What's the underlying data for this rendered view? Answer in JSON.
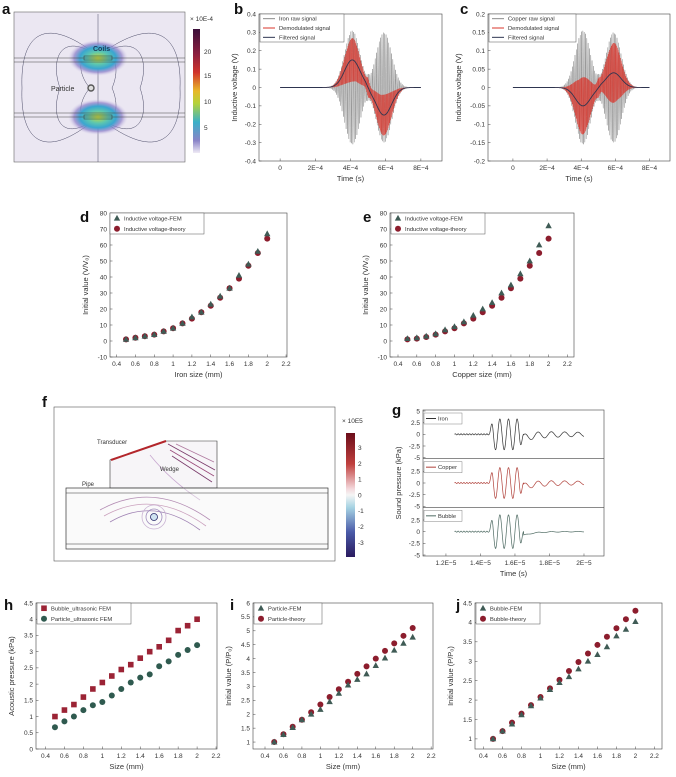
{
  "panel_labels": [
    "a",
    "b",
    "c",
    "d",
    "e",
    "f",
    "g",
    "h",
    "i",
    "j"
  ],
  "field_maps": {
    "a": {
      "labels": {
        "coils": "Coils",
        "particle": "Particle"
      },
      "colorbar": {
        "unit": "× 10E-4",
        "ticks": [
          "20",
          "15",
          "10",
          "5"
        ]
      }
    },
    "f": {
      "labels": {
        "transducer": "Transducer",
        "wedge": "Wedge",
        "pipe": "Pipe"
      },
      "colorbar": {
        "unit": "× 10E5",
        "ticks": [
          "3",
          "2",
          "1",
          "0",
          "-1",
          "-2",
          "-3"
        ]
      }
    }
  },
  "chart_data": [
    {
      "panel": "b",
      "type": "line",
      "xlabel": "Time (s)",
      "ylabel": "Inductive voltage (V)",
      "xlim": [
        -0.00012,
        0.00092
      ],
      "ylim": [
        -0.4,
        0.4
      ],
      "xticks": [
        0,
        0.0002,
        0.0004,
        0.0006,
        0.0008
      ],
      "xtick_labels": [
        "0",
        "2E−4",
        "4E−4",
        "6E−4",
        "8E−4"
      ],
      "yticks": [
        -0.4,
        -0.3,
        -0.2,
        -0.1,
        0,
        0.1,
        0.2,
        0.3,
        0.4
      ],
      "ytick_labels": [
        "-0.4",
        "-0.3",
        "-0.2",
        "-0.1",
        "0",
        "0.1",
        "0.2",
        "0.3",
        "0.4"
      ],
      "legend": [
        "Iron raw signal",
        "Demodulated signal",
        "Filtered signal"
      ],
      "colors": {
        "raw": "#8a8a8a",
        "demod": "#d9342b",
        "filtered": "#2e3550"
      },
      "signal": {
        "t_start": 0,
        "t_end": 0.0008,
        "lobes": [
          {
            "center": 0.00041,
            "raw_amplitude": 0.31,
            "filtered_peak": 0.15
          },
          {
            "center": 0.00059,
            "raw_amplitude": 0.3,
            "filtered_peak": -0.15
          }
        ]
      }
    },
    {
      "panel": "c",
      "type": "line",
      "xlabel": "Time (s)",
      "ylabel": "Inductive voltage (V)",
      "xlim": [
        -0.000146,
        0.00092
      ],
      "ylim": [
        -0.2,
        0.2
      ],
      "xticks": [
        0,
        0.0002,
        0.0004,
        0.0006,
        0.0008
      ],
      "xtick_labels": [
        "0",
        "2E−4",
        "4E−4",
        "6E−4",
        "8E−4"
      ],
      "yticks": [
        -0.2,
        -0.15,
        -0.1,
        -0.05,
        0,
        0.05,
        0.1,
        0.15,
        0.2
      ],
      "ytick_labels": [
        "-0.2",
        "-0.15",
        "-0.1",
        "-0.05",
        "0",
        "0.05",
        "0.1",
        "0.15",
        "0.2"
      ],
      "legend": [
        "Copper raw signal",
        "Demodulated signal",
        "Filtered signal"
      ],
      "colors": {
        "raw": "#8a8a8a",
        "demod": "#d9342b",
        "filtered": "#2e3550"
      },
      "signal": {
        "t_start": 0,
        "t_end": 0.0008,
        "lobes": [
          {
            "center": 0.00041,
            "raw_amplitude": 0.155,
            "filtered_peak": -0.05
          },
          {
            "center": 0.00059,
            "raw_amplitude": 0.15,
            "filtered_peak": 0.04
          }
        ]
      }
    },
    {
      "panel": "d",
      "type": "scatter",
      "xlabel": "Iron size (mm)",
      "ylabel": "Initial value (V/V₀)",
      "xlim": [
        0.33,
        2.21
      ],
      "ylim": [
        -10,
        80
      ],
      "xticks": [
        0.4,
        0.6,
        0.8,
        1,
        1.2,
        1.4,
        1.6,
        1.8,
        2,
        2.2
      ],
      "xtick_labels": [
        "0.4",
        "0.6",
        "0.8",
        "1",
        "1.2",
        "1.4",
        "1.6",
        "1.8",
        "2",
        "2.2"
      ],
      "yticks": [
        -10,
        0,
        10,
        20,
        30,
        40,
        50,
        60,
        70,
        80
      ],
      "ytick_labels": [
        "-10",
        "0",
        "10",
        "20",
        "30",
        "40",
        "50",
        "60",
        "70",
        "80"
      ],
      "x": [
        0.5,
        0.6,
        0.7,
        0.8,
        0.9,
        1.0,
        1.1,
        1.2,
        1.3,
        1.4,
        1.5,
        1.6,
        1.7,
        1.8,
        1.9,
        2.0
      ],
      "series": [
        {
          "name": "Inductive voltage-FEM",
          "marker": "triangle",
          "color": "#3f5b55",
          "values": [
            1,
            2,
            3,
            4,
            6,
            8,
            11,
            15,
            18,
            23,
            28,
            33,
            41,
            48,
            56,
            67
          ]
        },
        {
          "name": "Inductive voltage-theory",
          "marker": "circle",
          "color": "#8c1d2d",
          "values": [
            1,
            2,
            3,
            4,
            6,
            8,
            11,
            14,
            18,
            22,
            27,
            33,
            39,
            47,
            55,
            64
          ]
        }
      ]
    },
    {
      "panel": "e",
      "type": "scatter",
      "xlabel": "Copper size (mm)",
      "ylabel": "Initial value (V/V₀)",
      "xlim": [
        0.315,
        2.27
      ],
      "ylim": [
        -10,
        80
      ],
      "xticks": [
        0.4,
        0.6,
        0.8,
        1,
        1.2,
        1.4,
        1.6,
        1.8,
        2,
        2.2
      ],
      "xtick_labels": [
        "0.4",
        "0.6",
        "0.8",
        "1",
        "1.2",
        "1.4",
        "1.6",
        "1.8",
        "2",
        "2.2"
      ],
      "yticks": [
        -10,
        0,
        10,
        20,
        30,
        40,
        50,
        60,
        70,
        80
      ],
      "ytick_labels": [
        "-10",
        "0",
        "10",
        "20",
        "30",
        "40",
        "50",
        "60",
        "70",
        "80"
      ],
      "x": [
        0.5,
        0.6,
        0.7,
        0.8,
        0.9,
        1.0,
        1.1,
        1.2,
        1.3,
        1.4,
        1.5,
        1.6,
        1.7,
        1.8,
        1.9,
        2.0
      ],
      "series": [
        {
          "name": "Inductive voltage-FEM",
          "marker": "triangle",
          "color": "#3f5b55",
          "values": [
            1.5,
            2,
            3,
            4.5,
            7,
            9,
            12,
            16,
            20,
            24,
            30,
            35,
            42,
            50,
            60,
            72
          ]
        },
        {
          "name": "Inductive voltage-theory",
          "marker": "circle",
          "color": "#8c1d2d",
          "values": [
            1,
            1.5,
            2.5,
            4,
            6,
            8,
            11,
            14,
            18,
            22,
            27,
            33,
            39,
            47,
            55,
            64
          ]
        }
      ]
    },
    {
      "panel": "g",
      "type": "line",
      "xlabel": "Time (s)",
      "ylabel": "Sound pressure (kPa)",
      "xlim": [
        1.067e-05,
        2.116e-05
      ],
      "ylim": [
        -5,
        5
      ],
      "xticks": [
        1.2e-05,
        1.4e-05,
        1.6e-05,
        1.8e-05,
        2e-05
      ],
      "xtick_labels": [
        "1.2E−5",
        "1.4E−5",
        "1.6E−5",
        "1.8E−5",
        "2E−5"
      ],
      "yticks": [
        -5,
        -2.5,
        0,
        2.5,
        5
      ],
      "ytick_labels": [
        "-5",
        "-2.5",
        "0",
        "2.5",
        "5"
      ],
      "subplots": [
        {
          "name": "Iron",
          "color": "#333333",
          "burst_amplitude": 3.3,
          "tail_amplitude": 0.8
        },
        {
          "name": "Copper",
          "color": "#b0413a",
          "burst_amplitude": 3.3,
          "tail_amplitude": 0.7
        },
        {
          "name": "Bubble",
          "color": "#4f6b63",
          "burst_amplitude": 3.6,
          "tail_amplitude": 0.1
        }
      ],
      "signal": {
        "t_start": 1.25e-05,
        "burst_start": 1.45e-05,
        "burst_end": 1.65e-05,
        "t_end": 2e-05
      }
    },
    {
      "panel": "h",
      "type": "scatter",
      "xlabel": "Size (mm)",
      "ylabel": "Acoustic pressure (kPa)",
      "xlim": [
        0.3,
        2.21
      ],
      "ylim": [
        0,
        4.5
      ],
      "xticks": [
        0.4,
        0.6,
        0.8,
        1,
        1.2,
        1.4,
        1.6,
        1.8,
        2,
        2.2
      ],
      "xtick_labels": [
        "0.4",
        "0.6",
        "0.8",
        "1",
        "1.2",
        "1.4",
        "1.6",
        "1.8",
        "2",
        "2.2"
      ],
      "yticks": [
        0,
        0.5,
        1,
        1.5,
        2,
        2.5,
        3,
        3.5,
        4,
        4.5
      ],
      "ytick_labels": [
        "0",
        "0.5",
        "1",
        "1.5",
        "2",
        "2.5",
        "3",
        "3.5",
        "4",
        "4.5"
      ],
      "x": [
        0.5,
        0.6,
        0.7,
        0.8,
        0.9,
        1.0,
        1.1,
        1.2,
        1.3,
        1.4,
        1.5,
        1.6,
        1.7,
        1.8,
        1.9,
        2.0
      ],
      "series": [
        {
          "name": "Bubble_ultrasonic FEM",
          "marker": "square",
          "color": "#9b2335",
          "values": [
            1,
            1.2,
            1.37,
            1.6,
            1.85,
            2.05,
            2.25,
            2.45,
            2.6,
            2.8,
            3,
            3.15,
            3.35,
            3.65,
            3.8,
            4
          ]
        },
        {
          "name": "Particle_ultrasonic FEM",
          "marker": "circle",
          "color": "#2f5a4f",
          "values": [
            0.67,
            0.85,
            1,
            1.2,
            1.35,
            1.45,
            1.65,
            1.85,
            2.05,
            2.2,
            2.3,
            2.55,
            2.7,
            2.9,
            3.05,
            3.2
          ]
        }
      ]
    },
    {
      "panel": "i",
      "type": "scatter",
      "xlabel": "Size (mm)",
      "ylabel": "Initial value (P/P₀)",
      "xlim": [
        0.27,
        2.22
      ],
      "ylim": [
        0.75,
        6
      ],
      "xticks": [
        0.4,
        0.6,
        0.8,
        1,
        1.2,
        1.4,
        1.6,
        1.8,
        2,
        2.2
      ],
      "xtick_labels": [
        "0.4",
        "0.6",
        "0.8",
        "1",
        "1.2",
        "1.4",
        "1.6",
        "1.8",
        "2",
        "2.2"
      ],
      "yticks": [
        1,
        1.5,
        2,
        2.5,
        3,
        3.5,
        4,
        4.5,
        5,
        5.5,
        6
      ],
      "ytick_labels": [
        "1",
        "1.5",
        "2",
        "2.5",
        "3",
        "3.5",
        "4",
        "4.5",
        "5",
        "5.5",
        "6"
      ],
      "x": [
        0.5,
        0.6,
        0.7,
        0.8,
        0.9,
        1.0,
        1.1,
        1.2,
        1.3,
        1.4,
        1.5,
        1.6,
        1.7,
        1.8,
        1.9,
        2.0
      ],
      "series": [
        {
          "name": "Particle-FEM",
          "marker": "triangle",
          "color": "#3f5b55",
          "values": [
            1,
            1.27,
            1.52,
            1.8,
            2,
            2.17,
            2.45,
            2.75,
            3.05,
            3.25,
            3.45,
            3.75,
            4.02,
            4.3,
            4.55,
            4.77
          ]
        },
        {
          "name": "Particle-theory",
          "marker": "circle",
          "color": "#8c1d2d",
          "values": [
            1,
            1.28,
            1.55,
            1.8,
            2.07,
            2.35,
            2.62,
            2.9,
            3.17,
            3.45,
            3.72,
            4,
            4.28,
            4.55,
            4.82,
            5.1
          ]
        }
      ]
    },
    {
      "panel": "j",
      "type": "scatter",
      "xlabel": "Size (mm)",
      "ylabel": "Initial value (P/P₀)",
      "xlim": [
        0.31,
        2.28
      ],
      "ylim": [
        0.74,
        4.5
      ],
      "xticks": [
        0.4,
        0.6,
        0.8,
        1,
        1.2,
        1.4,
        1.6,
        1.8,
        2,
        2.2
      ],
      "xtick_labels": [
        "0.4",
        "0.6",
        "0.8",
        "1",
        "1.2",
        "1.4",
        "1.6",
        "1.8",
        "2",
        "2.2"
      ],
      "yticks": [
        1,
        1.5,
        2,
        2.5,
        3,
        3.5,
        4,
        4.5
      ],
      "ytick_labels": [
        "1",
        "1.5",
        "2",
        "2.5",
        "3",
        "3.5",
        "4",
        "4.5"
      ],
      "x": [
        0.5,
        0.6,
        0.7,
        0.8,
        0.9,
        1.0,
        1.1,
        1.2,
        1.3,
        1.4,
        1.5,
        1.6,
        1.7,
        1.8,
        1.9,
        2.0
      ],
      "series": [
        {
          "name": "Bubble-FEM",
          "marker": "triangle",
          "color": "#3f5b55",
          "values": [
            1,
            1.2,
            1.38,
            1.62,
            1.85,
            2.05,
            2.27,
            2.45,
            2.6,
            2.8,
            3,
            3.17,
            3.37,
            3.65,
            3.82,
            4.02
          ]
        },
        {
          "name": "Bubble-theory",
          "marker": "circle",
          "color": "#8c1d2d",
          "values": [
            1,
            1.2,
            1.42,
            1.65,
            1.87,
            2.08,
            2.3,
            2.52,
            2.75,
            2.98,
            3.2,
            3.42,
            3.63,
            3.85,
            4.08,
            4.3
          ]
        }
      ]
    }
  ]
}
